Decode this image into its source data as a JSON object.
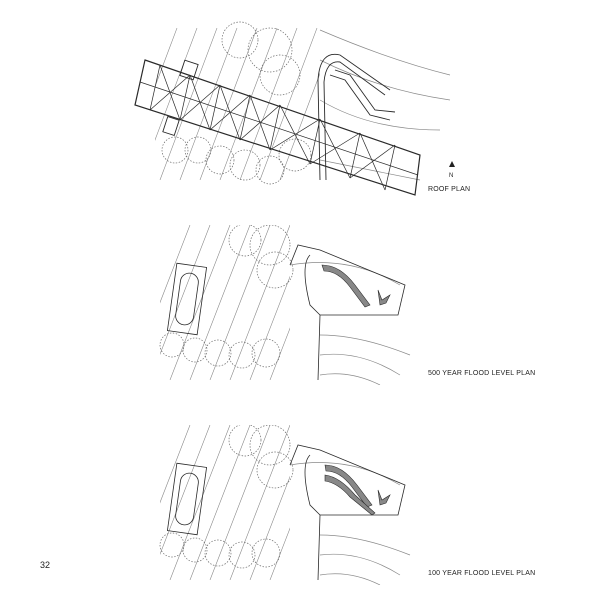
{
  "plans": [
    {
      "id": "roof",
      "label": "ROOF PLAN"
    },
    {
      "id": "flood500",
      "label": "500 YEAR FLOOD LEVEL PLAN"
    },
    {
      "id": "flood100",
      "label": "100 YEAR FLOOD LEVEL PLAN"
    }
  ],
  "north_arrow": {
    "letter": "N"
  },
  "page_number": "32",
  "colors": {
    "line": "#2a2a2a",
    "hatch": "#8a8a8a",
    "tree": "#6a6a6a"
  }
}
